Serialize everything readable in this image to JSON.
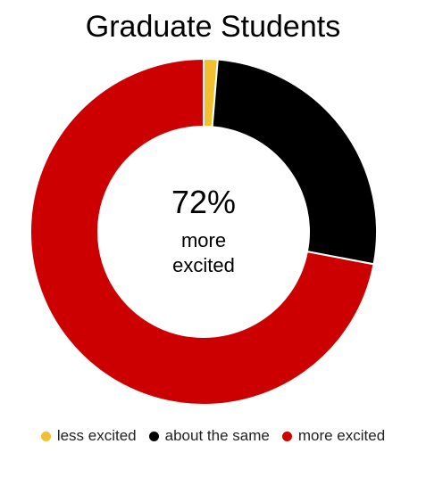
{
  "chart_data": {
    "type": "pie",
    "title": "Graduate Students",
    "center_label": {
      "value": "72%",
      "line1": "more",
      "line2": "excited"
    },
    "categories": [
      "less excited",
      "about the same",
      "more excited"
    ],
    "values": [
      1.3,
      26.7,
      72
    ],
    "colors": [
      "#f0c030",
      "#000000",
      "#cc0000"
    ],
    "donut": true,
    "start_angle_deg": 0,
    "direction": "clockwise",
    "legend_position": "bottom"
  }
}
